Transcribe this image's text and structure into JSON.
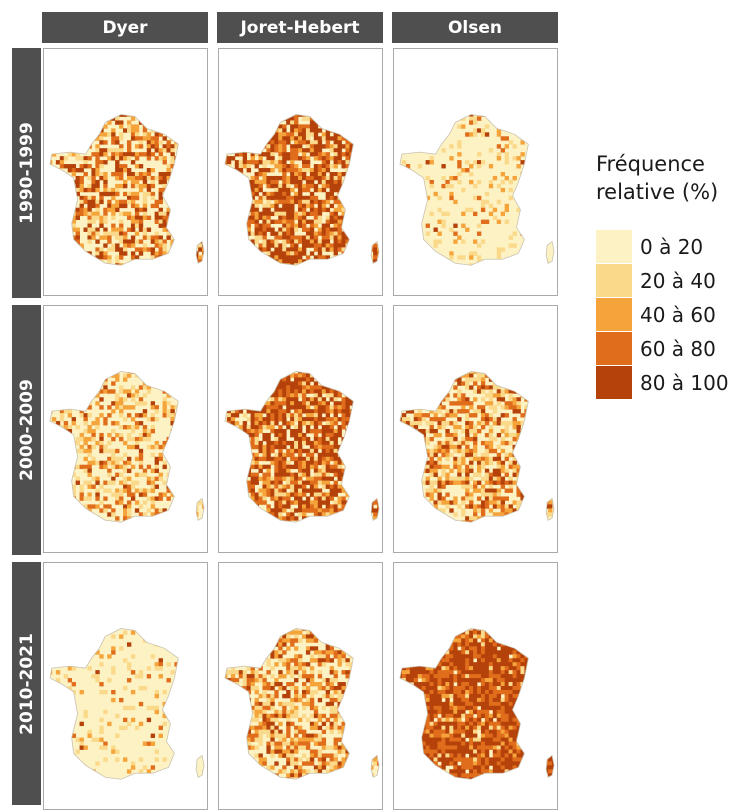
{
  "columns": [
    "Dyer",
    "Joret-Hebert",
    "Olsen"
  ],
  "rows": [
    "1990-1999",
    "2000-2009",
    "2010-2021"
  ],
  "legend": {
    "title_line1": "Fréquence",
    "title_line2": "relative (%)",
    "classes": [
      {
        "label": "0 à 20",
        "color": "#fdf2c4"
      },
      {
        "label": "20 à 40",
        "color": "#fbd98a"
      },
      {
        "label": "40 à 60",
        "color": "#f5a43b"
      },
      {
        "label": "60 à 80",
        "color": "#e06d1c"
      },
      {
        "label": "80 à 100",
        "color": "#b5420a"
      }
    ]
  },
  "map_shading": {
    "Dyer": {
      "1990-1999": "mixed-high",
      "2000-2009": "mixed-low",
      "2010-2021": "mostly-low"
    },
    "Joret-Hebert": {
      "1990-1999": "mostly-high",
      "2000-2009": "mostly-high",
      "2010-2021": "mixed"
    },
    "Olsen": {
      "1990-1999": "mostly-low",
      "2000-2009": "mixed",
      "2010-2021": "very-high"
    }
  }
}
